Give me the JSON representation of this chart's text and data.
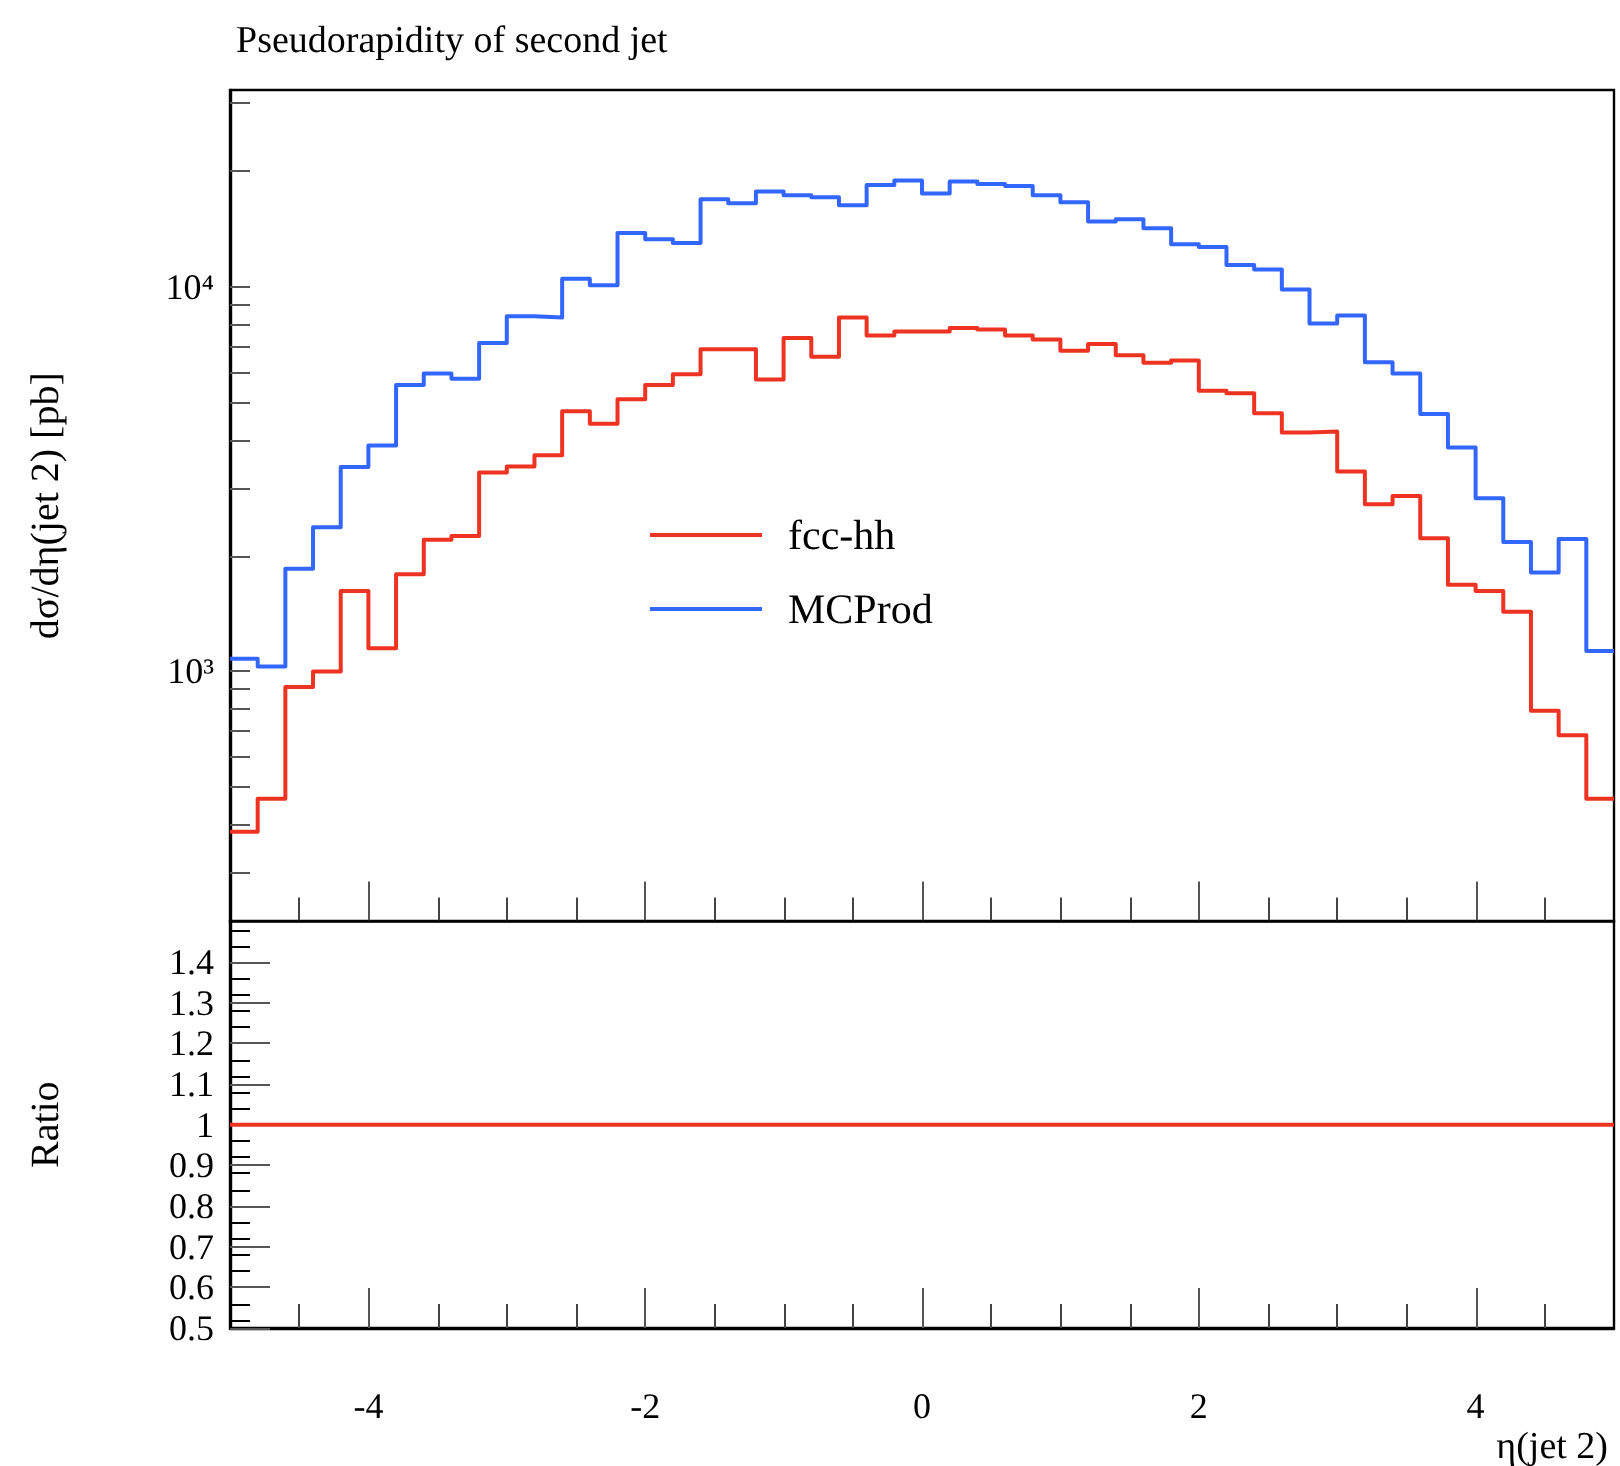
{
  "chart_data": [
    {
      "type": "histogram",
      "title": "Pseudorapidity of second jet",
      "ylabel": "dσ/dη(jet 2) [pb]",
      "bins": [
        -5,
        -4.8,
        -4.6,
        -4.4,
        -4.2,
        -4,
        -3.8,
        -3.6,
        -3.4,
        -3.2,
        -3,
        -2.8,
        -2.6,
        -2.4,
        -2.2,
        -2,
        -1.8,
        -1.6,
        -1.4,
        -1.2,
        -1,
        -0.8,
        -0.6,
        -0.4,
        -0.2,
        0,
        0.2,
        0.4,
        0.6,
        0.8,
        1,
        1.2,
        1.4,
        1.6,
        1.8,
        2,
        2.2,
        2.4,
        2.6,
        2.8,
        3,
        3.2,
        3.4,
        3.6,
        3.8,
        4,
        4.2,
        4.4,
        4.6,
        4.8,
        5
      ],
      "series": [
        {
          "name": "fcc-hh",
          "color": "#ee3322",
          "values": [
            383,
            467,
            912,
            1000,
            1620,
            1150,
            1790,
            2200,
            2250,
            3290,
            3410,
            3650,
            4750,
            4410,
            5100,
            5560,
            5930,
            6880,
            6880,
            5740,
            7360,
            6580,
            8320,
            7480,
            7660,
            7660,
            7820,
            7750,
            7480,
            7300,
            6820,
            7100,
            6640,
            6350,
            6440,
            5370,
            5290,
            4690,
            4180,
            4210,
            3310,
            2720,
            2860,
            2220,
            1680,
            1620,
            1430,
            791,
            683,
            467
          ]
        },
        {
          "name": "MCProd",
          "color": "#3366ff",
          "values": [
            1080,
            1030,
            1850,
            2370,
            3400,
            3870,
            5560,
            5950,
            5770,
            7150,
            8390,
            8320,
            10500,
            10100,
            13800,
            13300,
            13000,
            16900,
            16500,
            17700,
            17300,
            17100,
            16300,
            18400,
            18900,
            17500,
            18800,
            18500,
            18300,
            17300,
            16600,
            14800,
            15000,
            14200,
            12900,
            12700,
            11400,
            11100,
            9840,
            8030,
            8430,
            6370,
            5950,
            4670,
            3820,
            2820,
            2170,
            1810,
            2210,
            1130
          ]
        }
      ],
      "log": "y",
      "xlim": [
        -5,
        5
      ],
      "xticks": [
        -4,
        -2,
        0,
        2,
        4
      ],
      "ylim": [
        224,
        32500
      ],
      "yticks": [
        {
          "value": 1000,
          "label": "10³"
        },
        {
          "value": 10000,
          "label": "10⁴"
        }
      ],
      "tick_labels": "y",
      "legend": "center left"
    },
    {
      "type": "line",
      "xlabel": "η(jet 2)",
      "ylabel": "Ratio",
      "x": [
        -5,
        5
      ],
      "series": [
        {
          "color": "#ee3322",
          "values": [
            1,
            1
          ]
        }
      ],
      "xlim": [
        -5,
        5
      ],
      "xticks": [
        -4,
        -2,
        0,
        2,
        4
      ],
      "ylim": [
        0.5,
        1.5
      ],
      "yticks": [
        0.5,
        0.6,
        0.7,
        0.8,
        0.9,
        1,
        1.1,
        1.2,
        1.3,
        1.4
      ]
    }
  ]
}
